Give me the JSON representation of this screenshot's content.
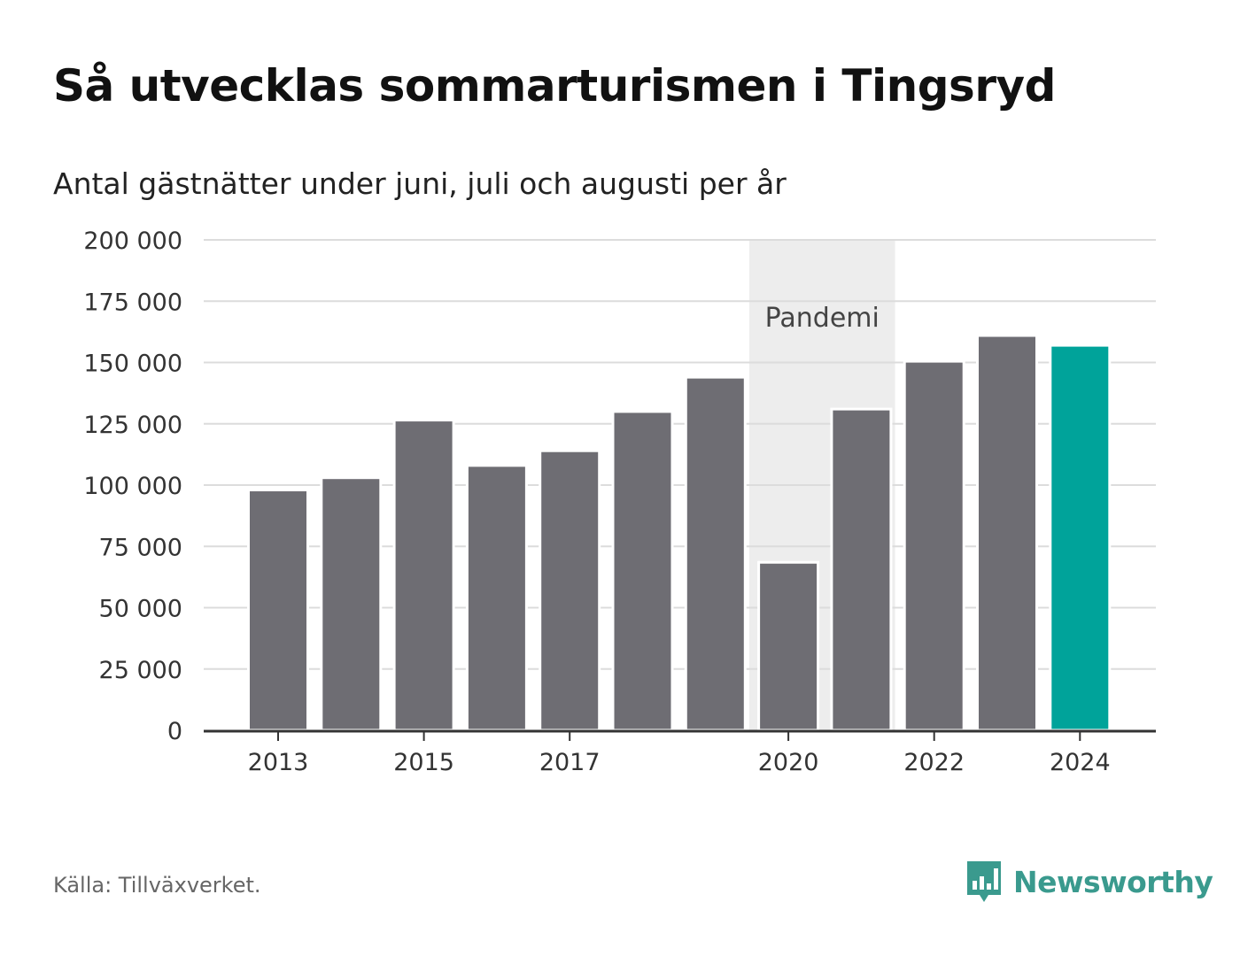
{
  "header": {
    "title": "Så utvecklas sommarturismen i Tingsryd",
    "subtitle": "Antal gästnätter under juni, juli och augusti per år"
  },
  "footer": {
    "source": "Källa: Tillväxverket.",
    "brand": "Newsworthy",
    "brand_icon": "bar-chart-speech-bubble-icon",
    "brand_color": "#3a9a8e"
  },
  "chart_data": {
    "type": "bar",
    "title": "Så utvecklas sommarturismen i Tingsryd",
    "subtitle": "Antal gästnätter under juni, juli och augusti per år",
    "categories": [
      "2013",
      "2014",
      "2015",
      "2016",
      "2017",
      "2018",
      "2019",
      "2020",
      "2021",
      "2022",
      "2023",
      "2024"
    ],
    "values": [
      98000,
      103000,
      126500,
      108000,
      114000,
      130000,
      144000,
      68500,
      131000,
      150500,
      161000,
      157000
    ],
    "x_tick_labels": [
      "2013",
      "2015",
      "2017",
      "2020",
      "2022",
      "2024"
    ],
    "y_ticks": [
      0,
      25000,
      50000,
      75000,
      100000,
      125000,
      150000,
      175000,
      200000
    ],
    "y_tick_labels": [
      "0",
      "25 000",
      "50 000",
      "75 000",
      "100 000",
      "125 000",
      "150 000",
      "175 000",
      "200 000"
    ],
    "ylim": [
      0,
      200000
    ],
    "xlabel": "",
    "ylabel": "",
    "grid": true,
    "legend": "none",
    "bar_color": "#6e6d73",
    "highlight_category": "2024",
    "highlight_color": "#00a39a",
    "shaded_region": {
      "label": "Pandemi",
      "from": "2020",
      "to": "2021",
      "color": "#ededed"
    }
  }
}
